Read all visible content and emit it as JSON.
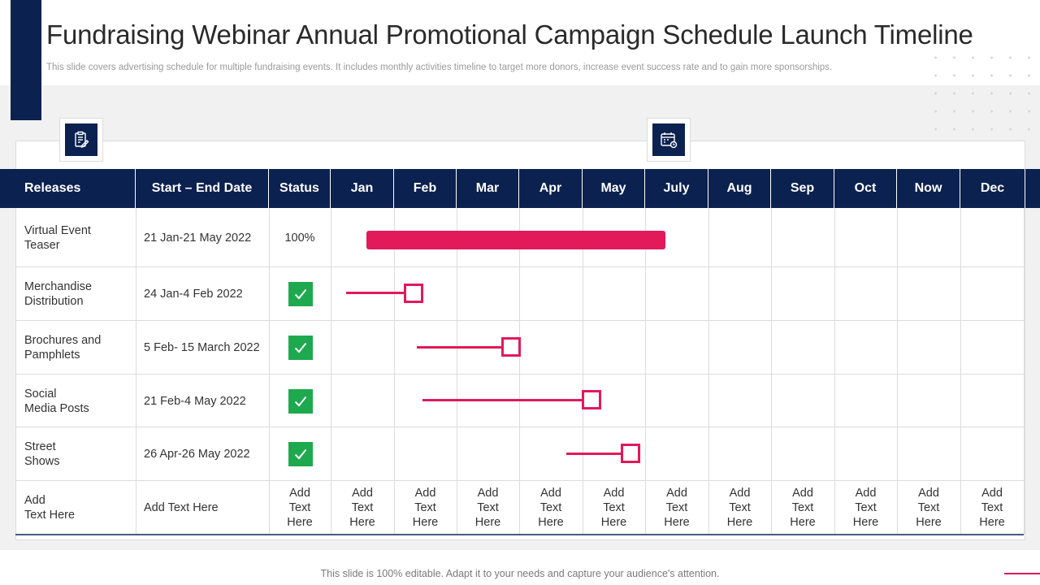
{
  "slide": {
    "title": "Fundraising Webinar Annual Promotional Campaign Schedule Launch Timeline",
    "subtitle": "This slide covers advertising schedule for multiple fundraising events. It includes monthly activities timeline to target more donors, increase event success rate and to gain more sponsorships.",
    "footer": "This slide is 100% editable. Adapt it to your needs and capture your audience's attention."
  },
  "icons": {
    "left": "document-edit-icon",
    "right": "calendar-clock-icon",
    "status_done": "checkmark-icon"
  },
  "colors": {
    "navy": "#0b2150",
    "accent": "#e2195b",
    "check_green": "#1ea94f"
  },
  "table": {
    "headers": [
      "Releases",
      "Start – End Date",
      "Status",
      "Jan",
      "Feb",
      "Mar",
      "Apr",
      "May",
      "July",
      "Aug",
      "Sep",
      "Oct",
      "Now",
      "Dec"
    ],
    "rows": [
      {
        "release": "Virtual Event\nTeaser",
        "dates": "21 Jan-21 May 2022",
        "status": "100%",
        "status_icon": ""
      },
      {
        "release": "Merchandise\nDistribution",
        "dates": "24 Jan-4 Feb 2022",
        "status": "",
        "status_icon": "checkmark-icon"
      },
      {
        "release": "Brochures and\nPamphlets",
        "dates": "5 Feb- 15 March 2022",
        "status": "",
        "status_icon": "checkmark-icon"
      },
      {
        "release": "Social\nMedia Posts",
        "dates": "21 Feb-4 May 2022",
        "status": "",
        "status_icon": "checkmark-icon"
      },
      {
        "release": "Street\nShows",
        "dates": "26 Apr-26 May 2022",
        "status": "",
        "status_icon": "checkmark-icon"
      }
    ],
    "placeholder_row": {
      "release": "Add\nText Here",
      "dates": "Add Text Here",
      "cell": "Add\nText\nHere"
    }
  }
}
